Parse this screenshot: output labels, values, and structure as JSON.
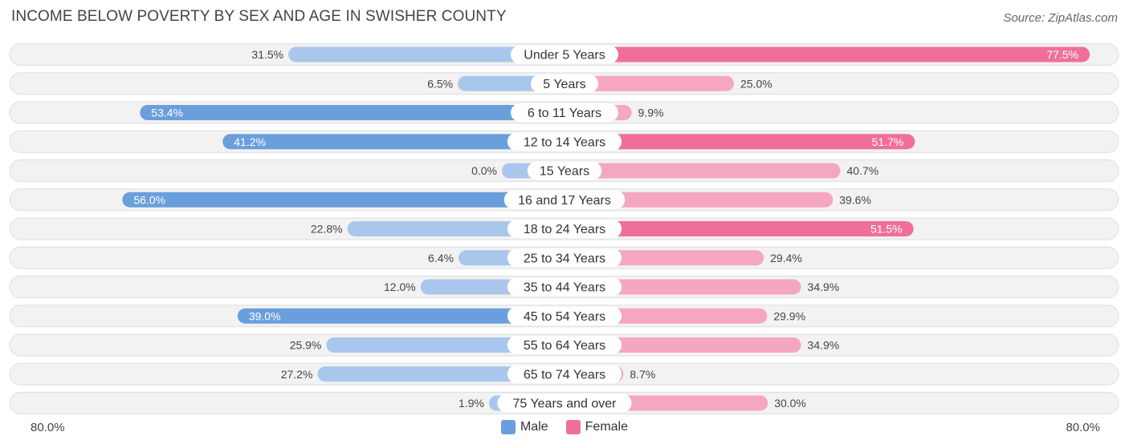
{
  "title": "INCOME BELOW POVERTY BY SEX AND AGE IN SWISHER COUNTY",
  "source": "Source: ZipAtlas.com",
  "colors": {
    "male_light": "#a9c7ec",
    "male_dark": "#6a9fdc",
    "female_light": "#f5a6c0",
    "female_dark": "#f06f98",
    "row_bg": "#f2f2f2",
    "row_border": "#dedede"
  },
  "chart_data": {
    "type": "bar",
    "orientation": "horizontal-diverging",
    "categories": [
      "Under 5 Years",
      "5 Years",
      "6 to 11 Years",
      "12 to 14 Years",
      "15 Years",
      "16 and 17 Years",
      "18 to 24 Years",
      "25 to 34 Years",
      "35 to 44 Years",
      "45 to 54 Years",
      "55 to 64 Years",
      "65 to 74 Years",
      "75 Years and over"
    ],
    "series": [
      {
        "name": "Male",
        "values": [
          31.5,
          6.5,
          53.4,
          41.2,
          0.0,
          56.0,
          22.8,
          6.4,
          12.0,
          39.0,
          25.9,
          27.2,
          1.9
        ]
      },
      {
        "name": "Female",
        "values": [
          77.5,
          25.0,
          9.9,
          51.7,
          40.7,
          39.6,
          51.5,
          29.4,
          34.9,
          29.9,
          34.9,
          8.7,
          30.0
        ]
      }
    ],
    "value_labels": {
      "Male": [
        "31.5%",
        "6.5%",
        "53.4%",
        "41.2%",
        "0.0%",
        "56.0%",
        "22.8%",
        "6.4%",
        "12.0%",
        "39.0%",
        "25.9%",
        "27.2%",
        "1.9%"
      ],
      "Female": [
        "77.5%",
        "25.0%",
        "9.9%",
        "51.7%",
        "40.7%",
        "39.6%",
        "51.5%",
        "29.4%",
        "34.9%",
        "29.9%",
        "34.9%",
        "8.7%",
        "30.0%"
      ]
    },
    "xlim": [
      -80,
      80
    ],
    "axis_left_label": "80.0%",
    "axis_right_label": "80.0%",
    "legend": [
      "Male",
      "Female"
    ],
    "legend_position": "bottom-center"
  }
}
